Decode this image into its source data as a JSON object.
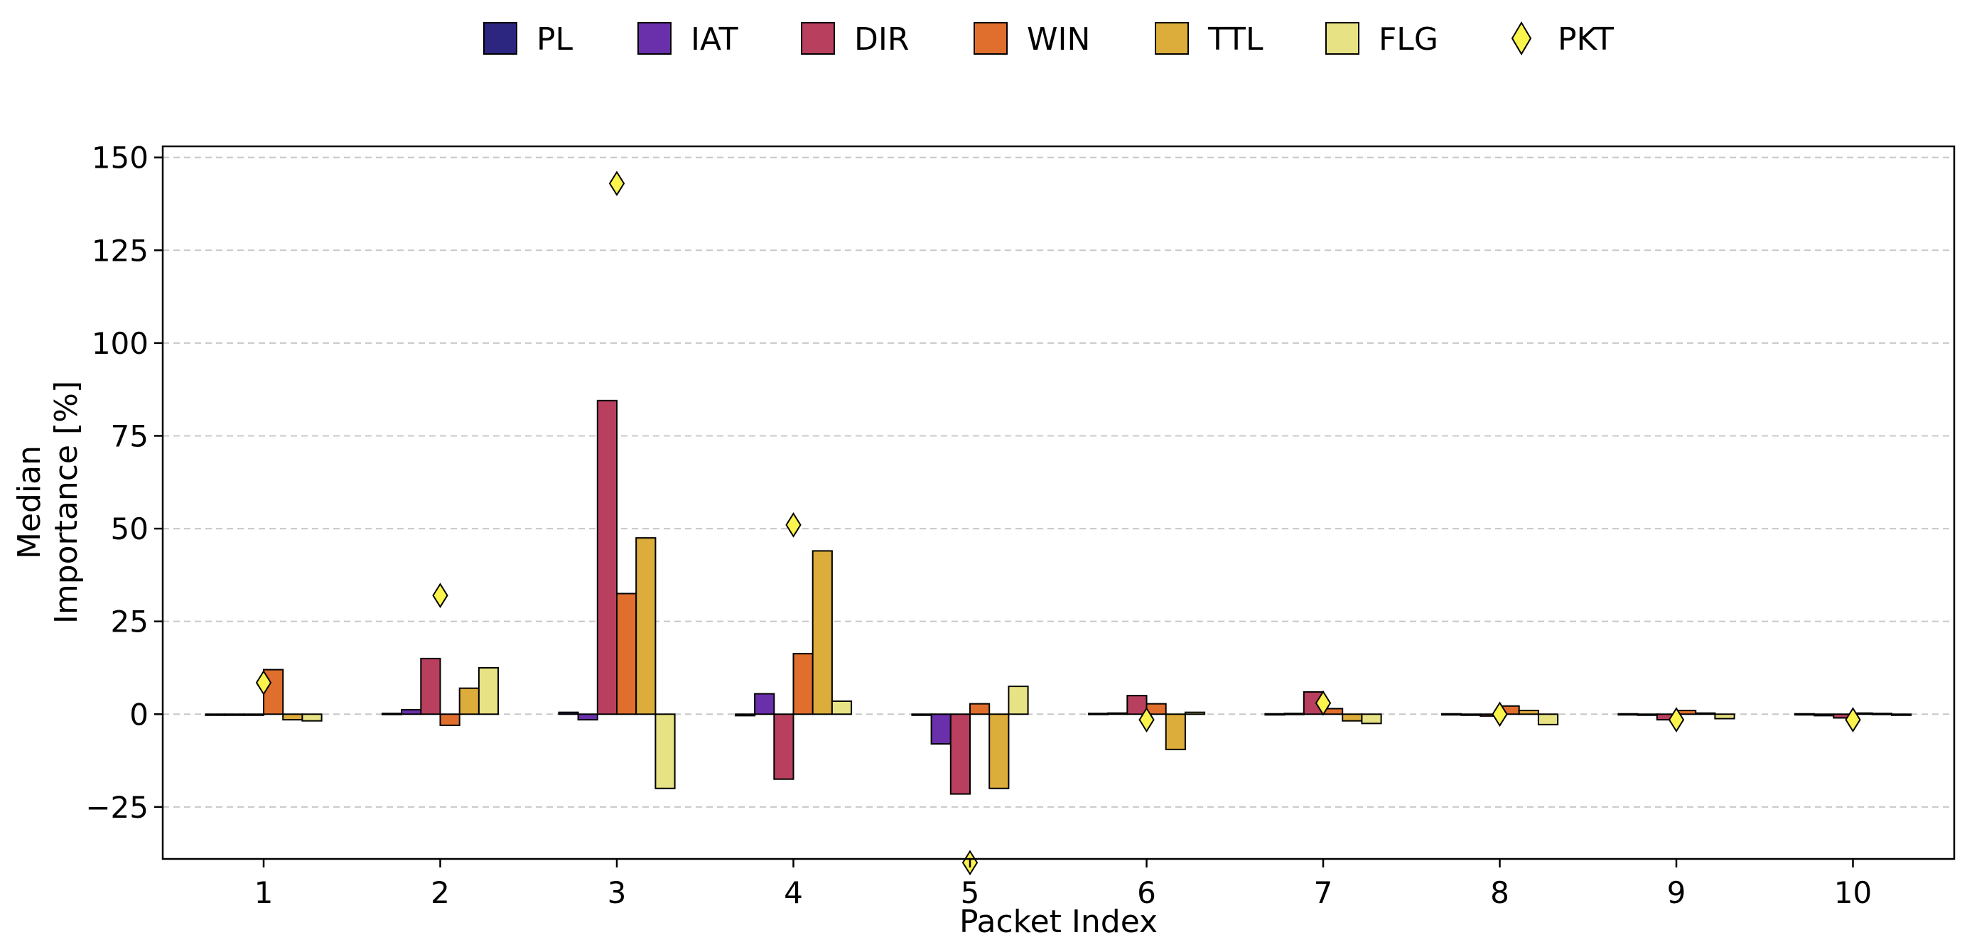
{
  "chart_data": {
    "type": "bar",
    "title": "",
    "xlabel": "Packet Index",
    "ylabel_lines": [
      "Median",
      "Importance [%]"
    ],
    "categories": [
      "1",
      "2",
      "3",
      "4",
      "5",
      "6",
      "7",
      "8",
      "9",
      "10"
    ],
    "ylim": [
      -39,
      153
    ],
    "yticks": [
      -25,
      0,
      25,
      50,
      75,
      100,
      125,
      150
    ],
    "ytick_labels": [
      "−25",
      "0",
      "25",
      "50",
      "75",
      "100",
      "125",
      "150"
    ],
    "grid": "y-dashed",
    "legend_position": "top-center",
    "series": [
      {
        "name": "PL",
        "color": "#2c2680",
        "values": [
          -0.2,
          0.2,
          0.5,
          -0.4,
          -0.2,
          0.2,
          0.1,
          0.1,
          0.1,
          0.1
        ]
      },
      {
        "name": "IAT",
        "color": "#6a2fab",
        "values": [
          -0.1,
          1.2,
          -1.5,
          5.5,
          -8.0,
          0.3,
          0.2,
          -0.2,
          -0.2,
          -0.4
        ]
      },
      {
        "name": "DIR",
        "color": "#b8405e",
        "values": [
          -0.1,
          15.0,
          84.5,
          -17.5,
          -21.5,
          5.0,
          6.0,
          -0.5,
          -1.5,
          -1.0
        ]
      },
      {
        "name": "WIN",
        "color": "#e06f2e",
        "values": [
          12.0,
          -3.0,
          32.5,
          16.3,
          2.8,
          2.8,
          1.5,
          2.2,
          1.0,
          0.3
        ]
      },
      {
        "name": "TTL",
        "color": "#ddad3b",
        "values": [
          -1.5,
          7.0,
          47.5,
          44.0,
          -20.0,
          -9.5,
          -1.8,
          1.0,
          0.3,
          0.2
        ]
      },
      {
        "name": "FLG",
        "color": "#e7e283",
        "values": [
          -1.8,
          12.5,
          -20.0,
          3.5,
          7.5,
          0.5,
          -2.5,
          -2.8,
          -1.2,
          -0.1
        ]
      }
    ],
    "marker_series": {
      "name": "PKT",
      "color": "#fbf44c",
      "values": [
        8.5,
        32.0,
        143.0,
        51.0,
        -40.0,
        -1.5,
        3.0,
        0.0,
        -1.5,
        -1.5
      ]
    }
  }
}
